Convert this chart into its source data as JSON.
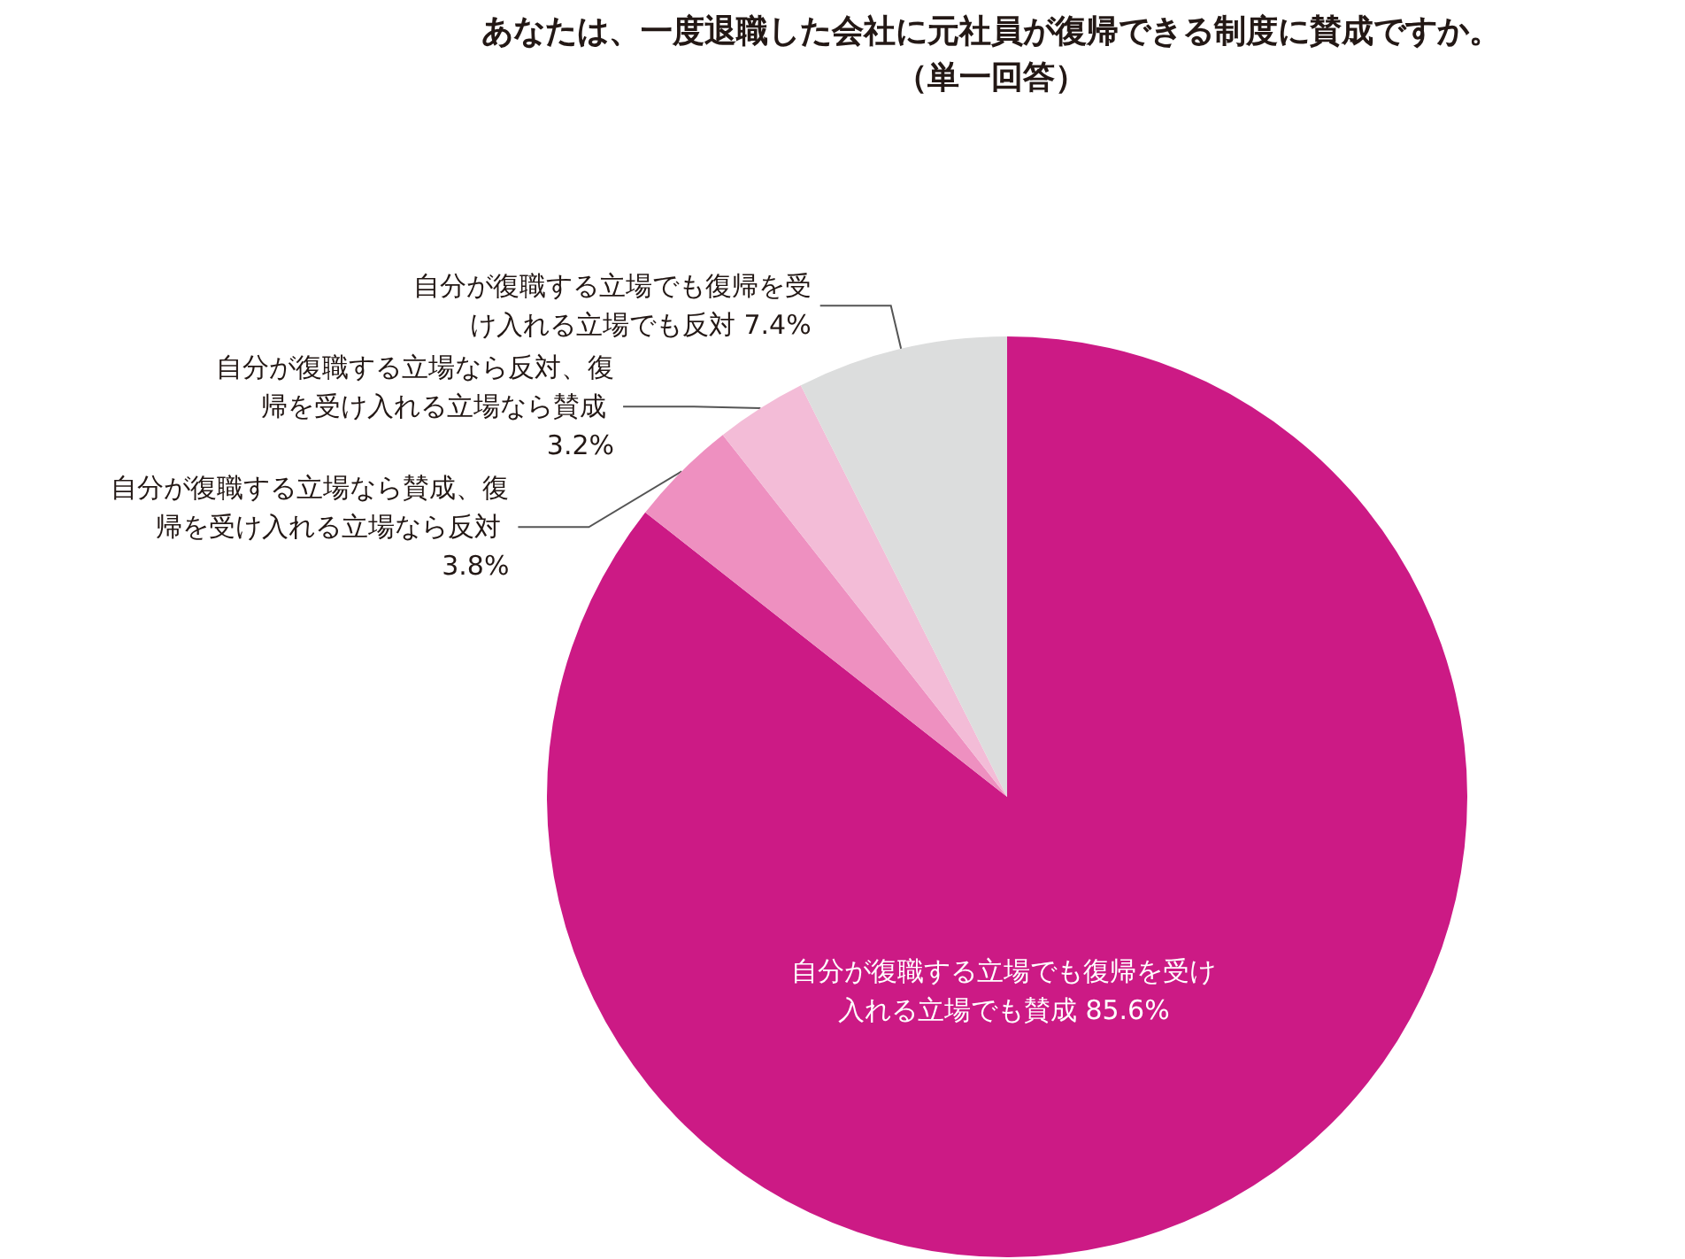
{
  "chart_data": {
    "type": "pie",
    "title": "あなたは、一度退職した会社に元社員が復帰できる制度に賛成ですか。",
    "subtitle": "（単一回答）",
    "categories": [
      "自分が復職する立場でも復帰を受け入れる立場でも賛成",
      "自分が復職する立場なら賛成、復帰を受け入れる立場なら反対",
      "自分が復職する立場なら反対、復帰を受け入れる立場なら賛成",
      "自分が復職する立場でも復帰を受け入れる立場でも反対"
    ],
    "values": [
      85.6,
      3.8,
      3.2,
      7.4
    ],
    "value_labels": [
      "85.6%",
      "3.8%",
      "3.2%",
      "7.4%"
    ],
    "colors": [
      "#cc1a85",
      "#ee90c0",
      "#f3bcd7",
      "#dcdddd"
    ],
    "legend": false
  }
}
